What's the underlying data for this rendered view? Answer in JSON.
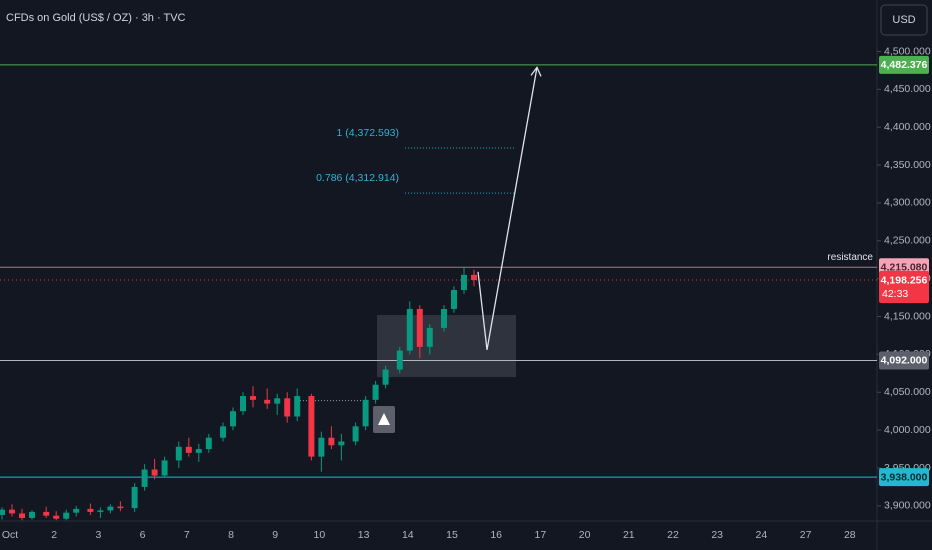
{
  "chart_data": {
    "type": "candlestick",
    "title": "CFDs on Gold (US$ / OZ) · 3h · TVC",
    "currency_button": "USD",
    "categories": [
      "Oct",
      "2",
      "3",
      "6",
      "7",
      "8",
      "9",
      "10",
      "13",
      "14",
      "15",
      "16",
      "17",
      "20",
      "21",
      "22",
      "23",
      "24",
      "27",
      "28"
    ],
    "candles": [
      [
        3888,
        3898,
        3882,
        3895
      ],
      [
        3895,
        3902,
        3886,
        3890
      ],
      [
        3890,
        3896,
        3881,
        3884
      ],
      [
        3884,
        3894,
        3882,
        3892
      ],
      [
        3892,
        3899,
        3884,
        3887
      ],
      [
        3887,
        3893,
        3881,
        3883
      ],
      [
        3883,
        3895,
        3881,
        3891
      ],
      [
        3891,
        3900,
        3886,
        3896
      ],
      [
        3896,
        3903,
        3888,
        3892
      ],
      [
        3892,
        3898,
        3884,
        3894
      ],
      [
        3894,
        3902,
        3890,
        3899
      ],
      [
        3899,
        3906,
        3893,
        3897
      ],
      [
        3897,
        3930,
        3892,
        3925
      ],
      [
        3925,
        3955,
        3920,
        3948
      ],
      [
        3948,
        3962,
        3935,
        3940
      ],
      [
        3940,
        3965,
        3938,
        3960
      ],
      [
        3960,
        3985,
        3950,
        3978
      ],
      [
        3978,
        3990,
        3965,
        3970
      ],
      [
        3970,
        3982,
        3958,
        3975
      ],
      [
        3975,
        3995,
        3970,
        3990
      ],
      [
        3990,
        4010,
        3985,
        4005
      ],
      [
        4005,
        4030,
        4000,
        4025
      ],
      [
        4025,
        4050,
        4020,
        4045
      ],
      [
        4045,
        4058,
        4030,
        4040
      ],
      [
        4040,
        4055,
        4028,
        4035
      ],
      [
        4035,
        4048,
        4020,
        4042
      ],
      [
        4042,
        4050,
        4010,
        4018
      ],
      [
        4018,
        4055,
        4012,
        4045
      ],
      [
        4045,
        4048,
        3960,
        3965
      ],
      [
        3965,
        3998,
        3945,
        3990
      ],
      [
        3990,
        4005,
        3975,
        3980
      ],
      [
        3980,
        3995,
        3960,
        3985
      ],
      [
        3985,
        4010,
        3980,
        4005
      ],
      [
        4005,
        4045,
        4000,
        4040
      ],
      [
        4040,
        4065,
        4035,
        4060
      ],
      [
        4060,
        4085,
        4055,
        4080
      ],
      [
        4080,
        4110,
        4075,
        4105
      ],
      [
        4105,
        4170,
        4100,
        4160
      ],
      [
        4160,
        4165,
        4095,
        4110
      ],
      [
        4110,
        4140,
        4100,
        4135
      ],
      [
        4135,
        4165,
        4130,
        4160
      ],
      [
        4160,
        4190,
        4155,
        4185
      ],
      [
        4185,
        4215,
        4180,
        4205
      ],
      [
        4205,
        4212,
        4190,
        4198.256
      ]
    ],
    "candles_per_day": 4,
    "up_color": "#089981",
    "down_color": "#f23645",
    "ylim": [
      3880,
      4568
    ],
    "yticks": [
      {
        "value": 3900,
        "label": "3,900.000"
      },
      {
        "value": 3950,
        "label": "3,950.000"
      },
      {
        "value": 4000,
        "label": "4,000.000"
      },
      {
        "value": 4050,
        "label": "4,050.000"
      },
      {
        "value": 4100,
        "label": "4,100.000"
      },
      {
        "value": 4150,
        "label": "4,150.000"
      },
      {
        "value": 4200,
        "label": "4,200.000"
      },
      {
        "value": 4250,
        "label": "4,250.000"
      },
      {
        "value": 4300,
        "label": "4,300.000"
      },
      {
        "value": 4350,
        "label": "4,350.000"
      },
      {
        "value": 4400,
        "label": "4,400.000"
      },
      {
        "value": 4450,
        "label": "4,450.000"
      },
      {
        "value": 4500,
        "label": "4,500.000"
      }
    ],
    "levels": [
      {
        "value": 4482.376,
        "label": "4,482.376",
        "color": "#4caf50",
        "text_color": "#ffffff"
      },
      {
        "value": 4215.08,
        "label": "4,215.080",
        "color": "#f5a3b6",
        "text_color": "#4a2630",
        "line_color": "#9c7f89",
        "name": "resistance"
      },
      {
        "value": 4092,
        "label": "4,092.000",
        "color": "#5d606b",
        "text_color": "#ffffff",
        "line_color": "#b2b5be"
      },
      {
        "value": 3938,
        "label": "3,938.000",
        "color": "#22b8cf",
        "text_color": "#0b2a30"
      }
    ],
    "current_price": {
      "value": 4198.256,
      "label": "4,198.256",
      "countdown": "42:33",
      "color": "#f23645"
    },
    "fib_levels": [
      {
        "text": "1 (4,372.593)",
        "value": 4372.593
      },
      {
        "text": "0.786 (4,312.914)",
        "value": 4312.914
      }
    ],
    "box": {
      "top": 4152,
      "bottom": 4070
    },
    "signal_level": 4039,
    "projection": [
      4209,
      4106,
      4479
    ]
  }
}
